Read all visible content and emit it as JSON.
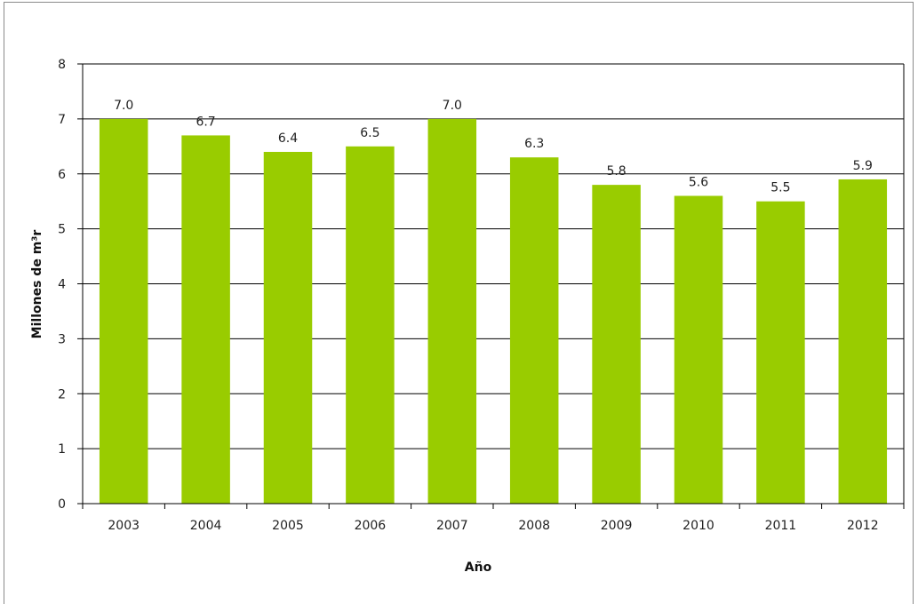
{
  "chart_data": {
    "type": "bar",
    "title": "",
    "xlabel": "Año",
    "ylabel": "Millones de m³r",
    "categories": [
      "2003",
      "2004",
      "2005",
      "2006",
      "2007",
      "2008",
      "2009",
      "2010",
      "2011",
      "2012"
    ],
    "values": [
      7.0,
      6.7,
      6.4,
      6.5,
      7.0,
      6.3,
      5.8,
      5.6,
      5.5,
      5.9
    ],
    "data_labels": [
      "7.0",
      "6.7",
      "6.4",
      "6.5",
      "7.0",
      "6.3",
      "5.8",
      "5.6",
      "5.5",
      "5.9"
    ],
    "ylim": [
      0,
      8
    ],
    "yticks": [
      "0",
      "1",
      "2",
      "3",
      "4",
      "5",
      "6",
      "7",
      "8"
    ],
    "grid": true,
    "legend": "none",
    "bar_color": "#99cc00"
  }
}
